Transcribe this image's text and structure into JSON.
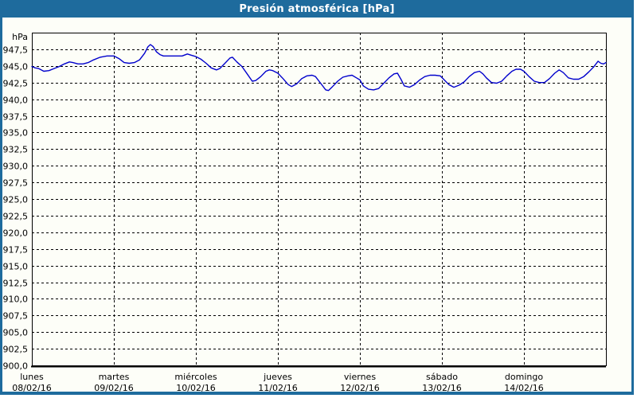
{
  "window": {
    "title": "Presión atmosférica [hPa]"
  },
  "colors": {
    "frame": "#1e6b9d",
    "title_text": "#ffffff",
    "panel_bg": "#fdfef8",
    "grid": "#000000",
    "axis": "#000000",
    "label": "#000000",
    "line": "#0000cc"
  },
  "chart_data": {
    "type": "line",
    "title": "Presión atmosférica [hPa]",
    "unit_label": "hPa",
    "ylabel": "",
    "xlabel": "",
    "ylim": [
      900,
      950
    ],
    "y_tick_step": 2.5,
    "grid": true,
    "y_tick_labels": [
      "947,5",
      "945,0",
      "942,5",
      "940,0",
      "937,5",
      "935,0",
      "932,5",
      "930,0",
      "927,5",
      "925,0",
      "922,5",
      "920,0",
      "917,5",
      "915,0",
      "912,5",
      "910,0",
      "907,5",
      "905,0",
      "902,5",
      "900,0"
    ],
    "x_days": [
      {
        "name": "lunes",
        "date": "08/02/16"
      },
      {
        "name": "martes",
        "date": "09/02/16"
      },
      {
        "name": "miércoles",
        "date": "10/02/16"
      },
      {
        "name": "jueves",
        "date": "11/02/16"
      },
      {
        "name": "viernes",
        "date": "12/02/16"
      },
      {
        "name": "sábado",
        "date": "13/02/16"
      },
      {
        "name": "domingo",
        "date": "14/02/16"
      }
    ],
    "x_total_hours": 168,
    "series": [
      {
        "name": "Presión atmosférica",
        "color": "#0000cc",
        "points_hour_hpa": [
          [
            0,
            944.9
          ],
          [
            1,
            944.7
          ],
          [
            2,
            944.6
          ],
          [
            3.5,
            944.2
          ],
          [
            5,
            944.3
          ],
          [
            6.5,
            944.6
          ],
          [
            8,
            944.9
          ],
          [
            9.5,
            945.3
          ],
          [
            11,
            945.6
          ],
          [
            12,
            945.5
          ],
          [
            13.5,
            945.3
          ],
          [
            15,
            945.3
          ],
          [
            16.5,
            945.5
          ],
          [
            18,
            945.9
          ],
          [
            20,
            946.3
          ],
          [
            22,
            946.5
          ],
          [
            24,
            946.5
          ],
          [
            25.5,
            946.1
          ],
          [
            27,
            945.5
          ],
          [
            28.5,
            945.4
          ],
          [
            30,
            945.5
          ],
          [
            31.5,
            945.9
          ],
          [
            33,
            946.9
          ],
          [
            34,
            947.9
          ],
          [
            34.7,
            948.2
          ],
          [
            35.5,
            947.9
          ],
          [
            36.5,
            947.1
          ],
          [
            37.5,
            946.7
          ],
          [
            38.5,
            946.5
          ],
          [
            40,
            946.5
          ],
          [
            42,
            946.5
          ],
          [
            44,
            946.5
          ],
          [
            45.5,
            946.8
          ],
          [
            46.7,
            946.6
          ],
          [
            48,
            946.4
          ],
          [
            49.5,
            946.0
          ],
          [
            51,
            945.4
          ],
          [
            52.5,
            944.7
          ],
          [
            54,
            944.4
          ],
          [
            55,
            944.6
          ],
          [
            56.5,
            945.4
          ],
          [
            58,
            946.2
          ],
          [
            58.7,
            946.3
          ],
          [
            60,
            945.6
          ],
          [
            61.5,
            944.9
          ],
          [
            63,
            943.8
          ],
          [
            64.5,
            942.7
          ],
          [
            65.5,
            942.8
          ],
          [
            67,
            943.4
          ],
          [
            68.5,
            944.2
          ],
          [
            69.5,
            944.4
          ],
          [
            70.5,
            944.3
          ],
          [
            72,
            943.9
          ],
          [
            73.5,
            943.1
          ],
          [
            75,
            942.2
          ],
          [
            76,
            941.9
          ],
          [
            77.5,
            942.3
          ],
          [
            79,
            943.1
          ],
          [
            80.5,
            943.5
          ],
          [
            82,
            943.6
          ],
          [
            83,
            943.4
          ],
          [
            84.5,
            942.4
          ],
          [
            86,
            941.4
          ],
          [
            86.8,
            941.3
          ],
          [
            88,
            941.9
          ],
          [
            89.5,
            942.7
          ],
          [
            91,
            943.3
          ],
          [
            92.5,
            943.5
          ],
          [
            93.7,
            943.6
          ],
          [
            95,
            943.2
          ],
          [
            96,
            942.9
          ],
          [
            97,
            942.0
          ],
          [
            98.5,
            941.5
          ],
          [
            100,
            941.4
          ],
          [
            101.5,
            941.6
          ],
          [
            103,
            942.4
          ],
          [
            104.5,
            943.2
          ],
          [
            106,
            943.8
          ],
          [
            107,
            943.9
          ],
          [
            108,
            943.0
          ],
          [
            109,
            942.0
          ],
          [
            110.5,
            941.8
          ],
          [
            112,
            942.2
          ],
          [
            113.5,
            942.9
          ],
          [
            115,
            943.4
          ],
          [
            116.5,
            943.6
          ],
          [
            118,
            943.6
          ],
          [
            119.5,
            943.5
          ],
          [
            120.5,
            943.0
          ],
          [
            122,
            942.2
          ],
          [
            123.5,
            941.8
          ],
          [
            125,
            942.1
          ],
          [
            126.5,
            942.6
          ],
          [
            128,
            943.4
          ],
          [
            129.5,
            944.0
          ],
          [
            131,
            944.2
          ],
          [
            132,
            943.8
          ],
          [
            133,
            943.2
          ],
          [
            134.5,
            942.5
          ],
          [
            136,
            942.4
          ],
          [
            137.5,
            942.7
          ],
          [
            139,
            943.5
          ],
          [
            140.5,
            944.2
          ],
          [
            141.7,
            944.5
          ],
          [
            143,
            944.5
          ],
          [
            144,
            944.2
          ],
          [
            145.5,
            943.4
          ],
          [
            147,
            942.7
          ],
          [
            148.5,
            942.5
          ],
          [
            150,
            942.5
          ],
          [
            151.5,
            943.1
          ],
          [
            153,
            943.9
          ],
          [
            154.3,
            944.4
          ],
          [
            155.5,
            944.0
          ],
          [
            157,
            943.2
          ],
          [
            158.5,
            943.0
          ],
          [
            160,
            943.0
          ],
          [
            161.5,
            943.4
          ],
          [
            163,
            944.1
          ],
          [
            164.5,
            944.9
          ],
          [
            165.7,
            945.7
          ],
          [
            166.5,
            945.4
          ],
          [
            167.3,
            945.3
          ],
          [
            168,
            945.5
          ]
        ]
      }
    ]
  }
}
